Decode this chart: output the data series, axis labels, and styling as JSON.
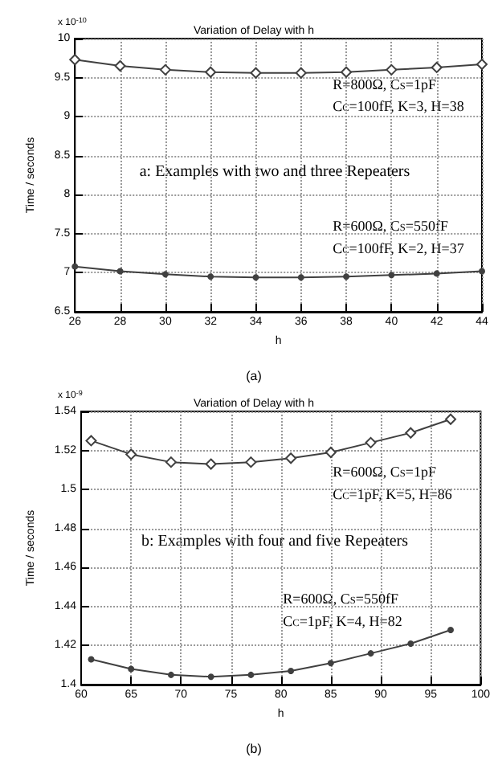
{
  "chart_data": [
    {
      "type": "line",
      "title": "Variation of Delay with h",
      "xlabel": "h",
      "ylabel": "Time / seconds",
      "xlim": [
        26,
        44
      ],
      "xticks": [
        26,
        28,
        30,
        32,
        34,
        36,
        38,
        40,
        42,
        44
      ],
      "ylim": [
        6.5,
        10
      ],
      "yticks": [
        6.5,
        7,
        7.5,
        8,
        8.5,
        9,
        9.5,
        10
      ],
      "grid": true,
      "line_style": "solid",
      "x": [
        26,
        28,
        30,
        32,
        34,
        36,
        38,
        40,
        42,
        44
      ],
      "series": [
        {
          "color": "#404040",
          "marker": "diamond",
          "values": [
            9.73,
            9.65,
            9.6,
            9.57,
            9.56,
            9.56,
            9.57,
            9.6,
            9.63,
            9.67
          ]
        },
        {
          "color": "#404040",
          "marker": "circle",
          "values": [
            7.08,
            7.02,
            6.98,
            6.95,
            6.94,
            6.94,
            6.95,
            6.97,
            6.99,
            7.02
          ]
        }
      ],
      "annotations": [
        "x 10$^{-10}$",
        "R=800Ω, C$_{S}$=1pF",
        "C$_{C}$=100fF, K=3, H=38",
        "a: Examples with two and three Repeaters",
        "R=600Ω, C$_{S}$=550fF",
        "C$_{C}$=100fF, K=2, H=37",
        "(a)"
      ]
    },
    {
      "type": "line",
      "title": "Variation of Delay with h",
      "xlabel": "h",
      "ylabel": "Time / seconds",
      "xlim": [
        60,
        100
      ],
      "xticks": [
        60,
        65,
        70,
        75,
        80,
        85,
        90,
        95,
        100
      ],
      "ylim": [
        1.4,
        1.54
      ],
      "yticks": [
        1.4,
        1.42,
        1.44,
        1.46,
        1.48,
        1.5,
        1.52,
        1.54
      ],
      "grid": true,
      "line_style": "solid",
      "x": [
        61,
        65,
        69,
        73,
        77,
        81,
        85,
        89,
        93,
        97
      ],
      "series": [
        {
          "color": "#404040",
          "marker": "diamond",
          "values": [
            1.525,
            1.518,
            1.514,
            1.513,
            1.514,
            1.516,
            1.519,
            1.524,
            1.529,
            1.536
          ]
        },
        {
          "color": "#404040",
          "marker": "circle",
          "values": [
            1.413,
            1.408,
            1.405,
            1.404,
            1.405,
            1.407,
            1.411,
            1.416,
            1.421,
            1.428
          ]
        }
      ],
      "annotations": [
        "x 10$^{-9}$",
        "R=600Ω, C$_{S}$=1pF",
        "C$_{C}$=1pF, K=5, H=86",
        "b: Examples with four and five Repeaters",
        "R=600Ω, C$_{S}$=550fF",
        "C$_{C}$=1pF, K=4, H=82",
        "(b)"
      ]
    }
  ]
}
